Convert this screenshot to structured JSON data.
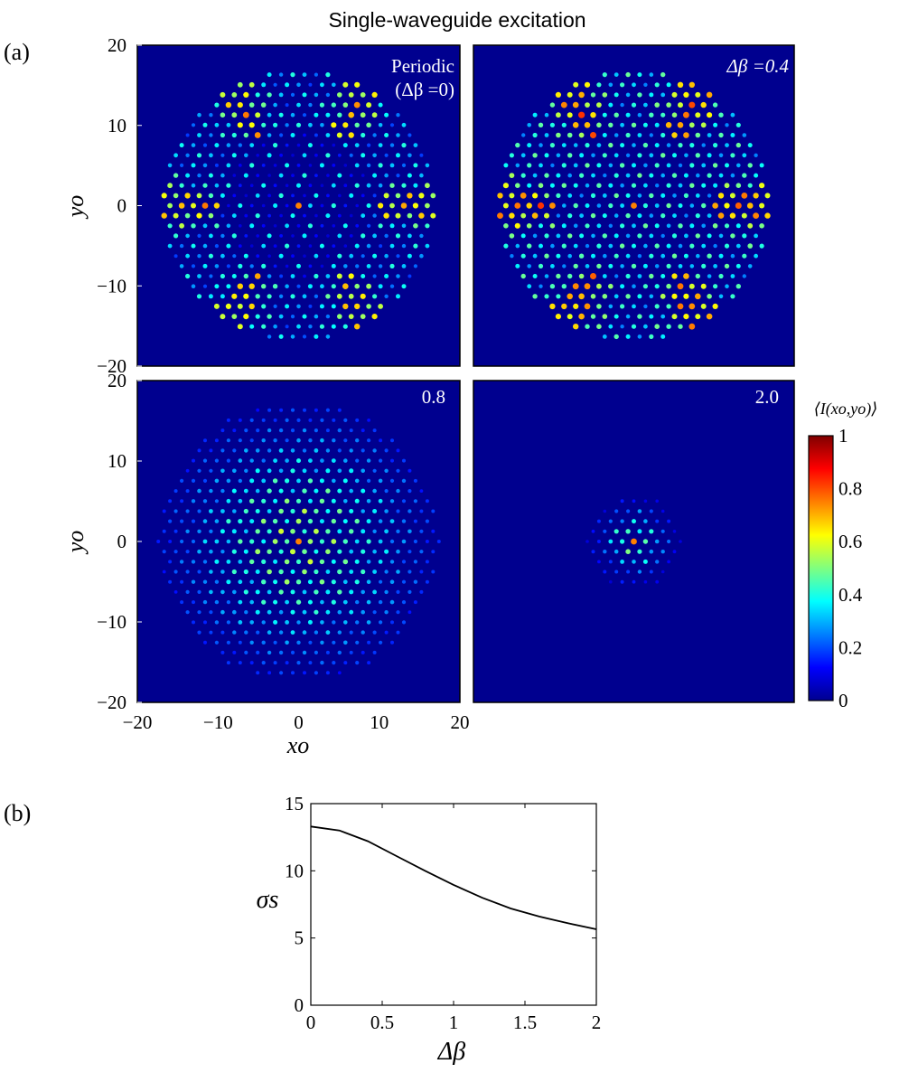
{
  "figure": {
    "title": "Single-waveguide excitation",
    "panel_a_label": "(a)",
    "panel_b_label": "(b)"
  },
  "chart_data": [
    {
      "type": "heatmap",
      "id": "panel-a",
      "colormap": "jet",
      "colorbar": {
        "label": "⟨I(xo,yo)⟩",
        "ticks": [
          "0",
          "0.2",
          "0.4",
          "0.6",
          "0.8",
          "1"
        ],
        "range": [
          0,
          1
        ]
      },
      "x_axis": {
        "label": "xo",
        "ticks": [
          "−20",
          "−10",
          "0",
          "10",
          "20"
        ],
        "range": [
          -20,
          20
        ]
      },
      "y_axis": {
        "label": "yo",
        "ticks": [
          "20",
          "10",
          "0",
          "−10",
          "−20"
        ],
        "range": [
          -20,
          20
        ]
      },
      "lattice": {
        "spacing": 1.45,
        "max_radius": 17.5
      },
      "subplots": [
        {
          "label_line1": "Periodic",
          "label_line2": "(Δβ =0)",
          "delta_beta": 0,
          "spread": "hexagonal-wide",
          "color_background": "#00008f"
        },
        {
          "label_line1": "Δβ =0.4",
          "label_line2": "",
          "delta_beta": 0.4,
          "spread": "hexagonal-wide"
        },
        {
          "label_line1": "0.8",
          "label_line2": "",
          "delta_beta": 0.8,
          "spread": "moderate"
        },
        {
          "label_line1": "2.0",
          "label_line2": "",
          "delta_beta": 2.0,
          "spread": "localized"
        }
      ]
    },
    {
      "type": "line",
      "id": "panel-b",
      "xlabel": "Δβ",
      "ylabel": "σs",
      "xlim": [
        0,
        2
      ],
      "ylim": [
        0,
        15
      ],
      "x_ticks": [
        "0",
        "0.5",
        "1",
        "1.5",
        "2"
      ],
      "y_ticks": [
        "0",
        "5",
        "10",
        "15"
      ],
      "series": [
        {
          "x": [
            0,
            0.2,
            0.4,
            0.6,
            0.8,
            1.0,
            1.2,
            1.4,
            1.6,
            1.8,
            2.0
          ],
          "y": [
            13.3,
            13.0,
            12.2,
            11.1,
            10.0,
            8.95,
            8.0,
            7.2,
            6.6,
            6.1,
            5.65
          ],
          "color": "#000000"
        }
      ]
    }
  ]
}
